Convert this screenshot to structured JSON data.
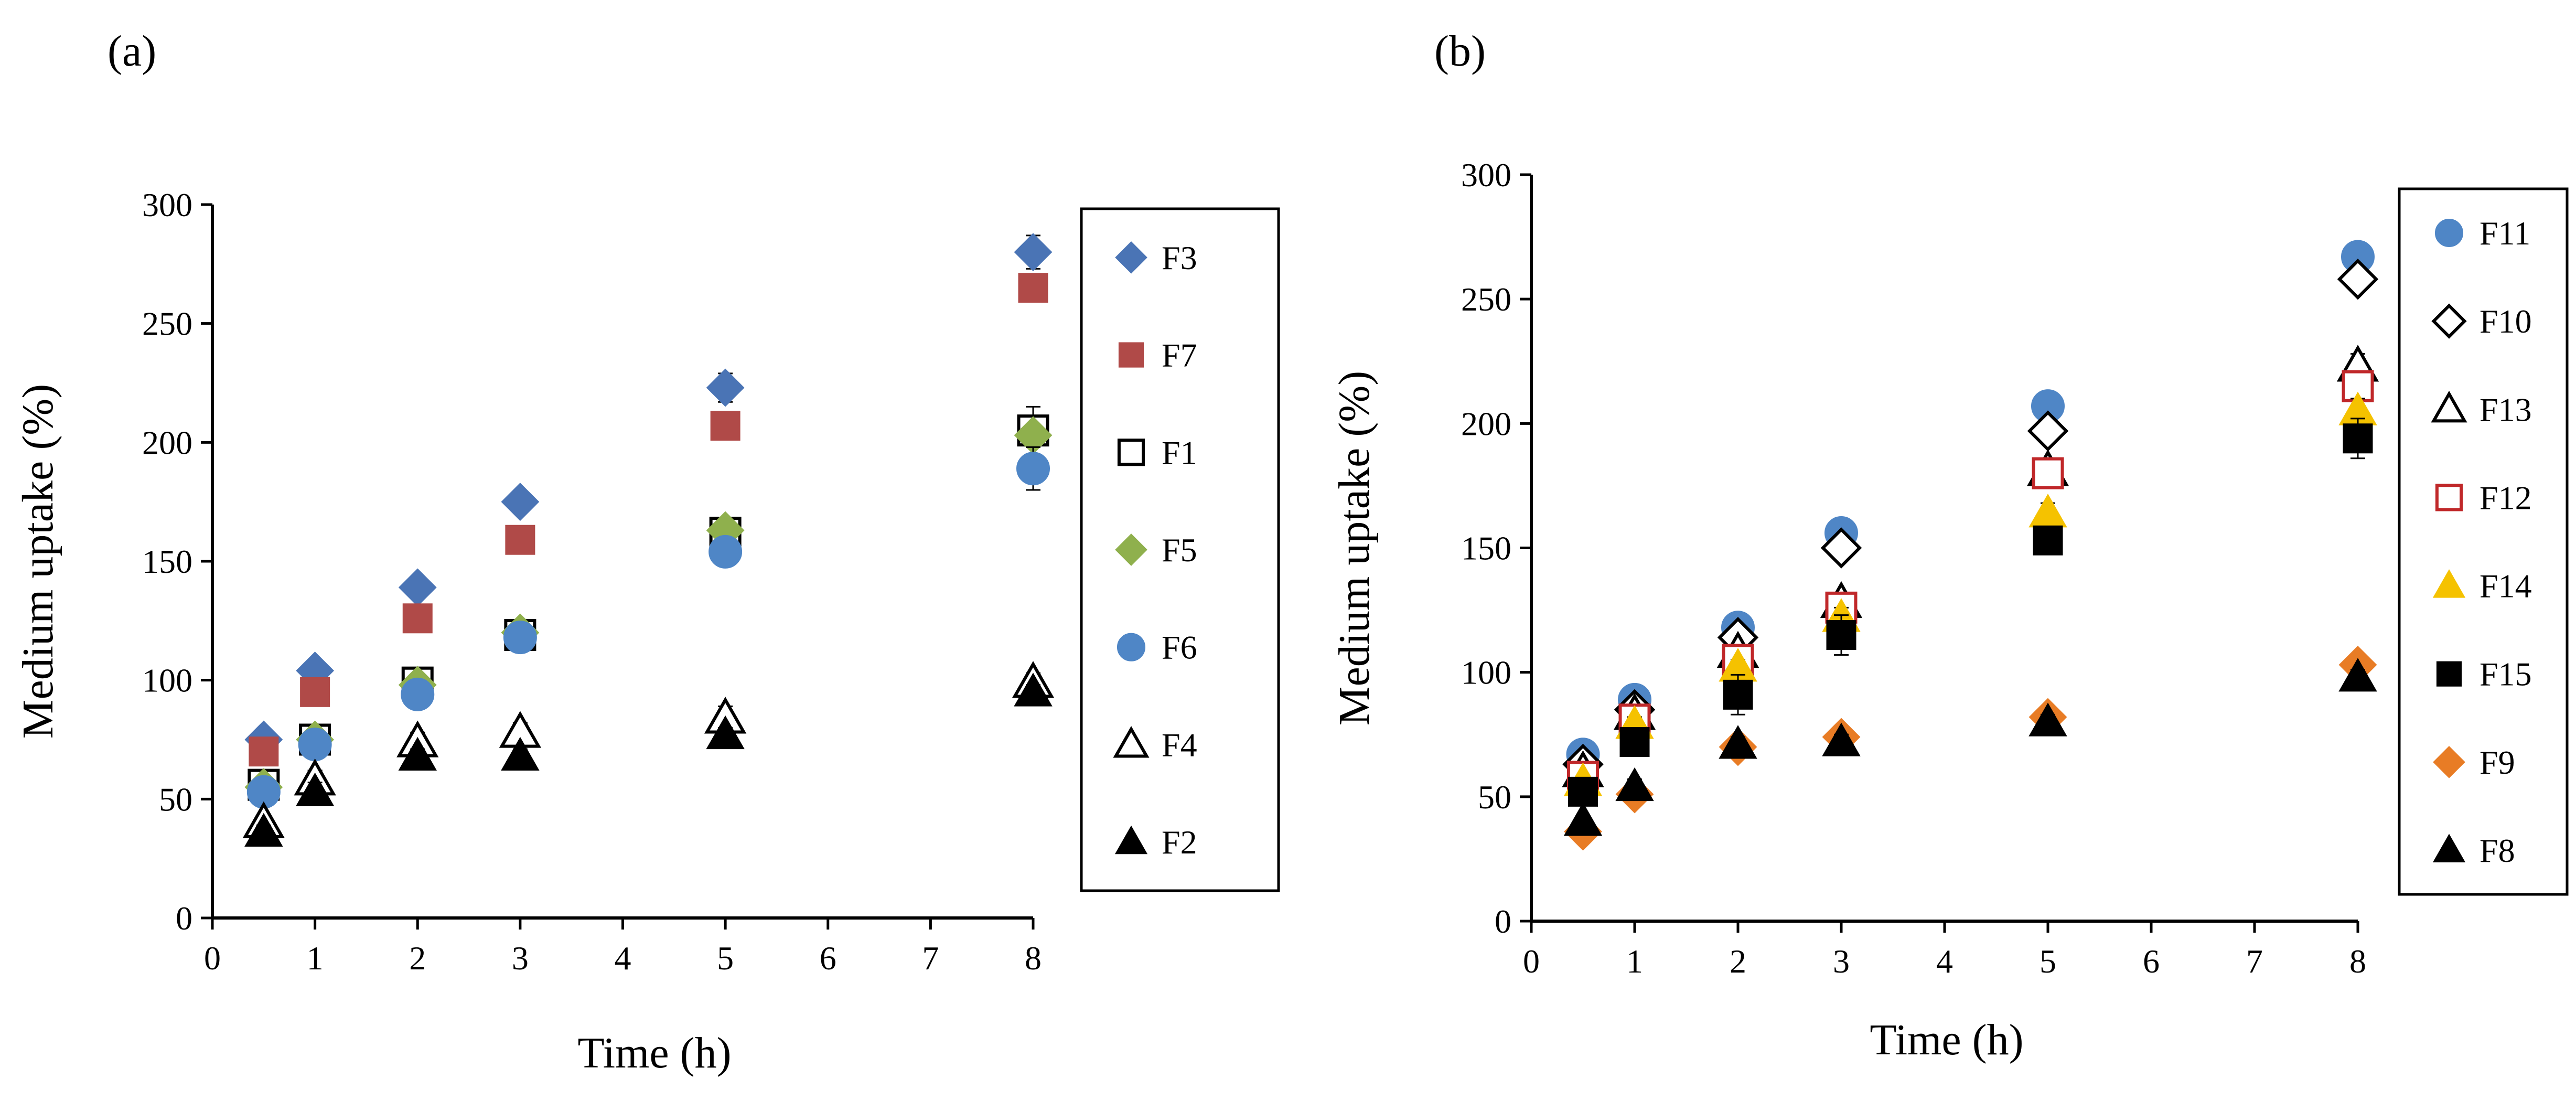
{
  "chart_data": [
    {
      "type": "scatter",
      "panel_label": "(a)",
      "xlabel": "Time (h)",
      "ylabel": "Medium uptake (%)",
      "xlim": [
        0,
        8
      ],
      "ylim": [
        0,
        300
      ],
      "x_ticks": [
        0,
        1,
        2,
        3,
        4,
        5,
        6,
        7,
        8
      ],
      "y_ticks": [
        0,
        50,
        100,
        150,
        200,
        250,
        300
      ],
      "legend_position": "right",
      "series": [
        {
          "name": "F3",
          "marker": "diamond",
          "filled": true,
          "color": "#4a74b5",
          "x": [
            0.5,
            1,
            2,
            3,
            5,
            8
          ],
          "y": [
            75,
            104,
            139,
            175,
            223,
            280
          ],
          "err": [
            3,
            3,
            4,
            3,
            6,
            7
          ]
        },
        {
          "name": "F7",
          "marker": "square",
          "filled": true,
          "color": "#b04a48",
          "x": [
            0.5,
            1,
            2,
            3,
            5,
            8
          ],
          "y": [
            70,
            95,
            126,
            159,
            207,
            265
          ],
          "err": [
            3,
            3,
            4,
            3,
            4,
            4
          ]
        },
        {
          "name": "F1",
          "marker": "square",
          "filled": false,
          "color": "#000000",
          "x": [
            0.5,
            1,
            2,
            3,
            5,
            8
          ],
          "y": [
            56,
            75,
            99,
            119,
            162,
            205
          ],
          "err": [
            3,
            4,
            5,
            3,
            4,
            10
          ]
        },
        {
          "name": "F5",
          "marker": "diamond",
          "filled": true,
          "color": "#8fb04d",
          "x": [
            0.5,
            1,
            2,
            3,
            5,
            8
          ],
          "y": [
            55,
            75,
            98,
            120,
            163,
            203
          ],
          "err": [
            2,
            3,
            3,
            3,
            3,
            4
          ]
        },
        {
          "name": "F6",
          "marker": "circle",
          "filled": true,
          "color": "#4f86c6",
          "x": [
            0.5,
            1,
            2,
            3,
            5,
            8
          ],
          "y": [
            53,
            73,
            94,
            118,
            154,
            189
          ],
          "err": [
            3,
            3,
            3,
            3,
            3,
            9
          ]
        },
        {
          "name": "F4",
          "marker": "triangle",
          "filled": false,
          "color": "#000000",
          "x": [
            0.5,
            1,
            2,
            3,
            5,
            8
          ],
          "y": [
            40,
            58,
            74,
            78,
            84,
            99
          ],
          "err": [
            3,
            4,
            4,
            4,
            5,
            4
          ]
        },
        {
          "name": "F2",
          "marker": "triangle",
          "filled": true,
          "color": "#000000",
          "x": [
            0.5,
            1,
            2,
            3,
            5,
            8
          ],
          "y": [
            36,
            53,
            68,
            68,
            77,
            95
          ],
          "err": [
            3,
            4,
            3,
            3,
            3,
            3
          ]
        }
      ]
    },
    {
      "type": "scatter",
      "panel_label": "(b)",
      "xlabel": "Time (h)",
      "ylabel": "Medium uptake (%)",
      "xlim": [
        0,
        8
      ],
      "ylim": [
        0,
        300
      ],
      "x_ticks": [
        0,
        1,
        2,
        3,
        4,
        5,
        6,
        7,
        8
      ],
      "y_ticks": [
        0,
        50,
        100,
        150,
        200,
        250,
        300
      ],
      "legend_position": "right",
      "series": [
        {
          "name": "F11",
          "marker": "circle",
          "filled": true,
          "color": "#4f86c6",
          "x": [
            0.5,
            1,
            2,
            3,
            5,
            8
          ],
          "y": [
            67,
            89,
            118,
            156,
            207,
            267
          ],
          "err": [
            2,
            3,
            3,
            3,
            3,
            3
          ]
        },
        {
          "name": "F10",
          "marker": "diamond",
          "filled": false,
          "color": "#000000",
          "x": [
            0.5,
            1,
            2,
            3,
            5,
            8
          ],
          "y": [
            63,
            85,
            114,
            150,
            197,
            258
          ],
          "err": [
            2,
            3,
            4,
            3,
            4,
            4
          ]
        },
        {
          "name": "F13",
          "marker": "triangle",
          "filled": false,
          "color": "#000000",
          "x": [
            0.5,
            1,
            2,
            3,
            5,
            8
          ],
          "y": [
            60,
            83,
            108,
            128,
            181,
            223
          ],
          "err": [
            2,
            3,
            3,
            4,
            4,
            5
          ]
        },
        {
          "name": "F12",
          "marker": "square",
          "filled": false,
          "color": "#c0282a",
          "x": [
            0.5,
            1,
            2,
            3,
            5,
            8
          ],
          "y": [
            58,
            81,
            105,
            126,
            180,
            215
          ],
          "err": [
            2,
            3,
            3,
            4,
            4,
            5
          ]
        },
        {
          "name": "F14",
          "marker": "triangle",
          "filled": true,
          "color": "#f5c200",
          "x": [
            0.5,
            1,
            2,
            3,
            5,
            8
          ],
          "y": [
            56,
            79,
            102,
            122,
            164,
            205
          ],
          "err": [
            2,
            3,
            3,
            4,
            4,
            5
          ]
        },
        {
          "name": "F15",
          "marker": "square",
          "filled": true,
          "color": "#000000",
          "x": [
            0.5,
            1,
            2,
            3,
            5,
            8
          ],
          "y": [
            52,
            72,
            91,
            115,
            153,
            194
          ],
          "err": [
            3,
            3,
            8,
            8,
            4,
            8
          ]
        },
        {
          "name": "F9",
          "marker": "diamond",
          "filled": true,
          "color": "#e87c25",
          "x": [
            0.5,
            1,
            2,
            3,
            5,
            8
          ],
          "y": [
            36,
            51,
            70,
            74,
            82,
            103
          ],
          "err": [
            2,
            2,
            2,
            2,
            2,
            2
          ]
        },
        {
          "name": "F8",
          "marker": "triangle",
          "filled": true,
          "color": "#000000",
          "x": [
            0.5,
            1,
            2,
            3,
            5,
            8
          ],
          "y": [
            40,
            54,
            71,
            72,
            80,
            98
          ],
          "err": [
            2,
            3,
            3,
            3,
            3,
            3
          ]
        }
      ]
    }
  ]
}
